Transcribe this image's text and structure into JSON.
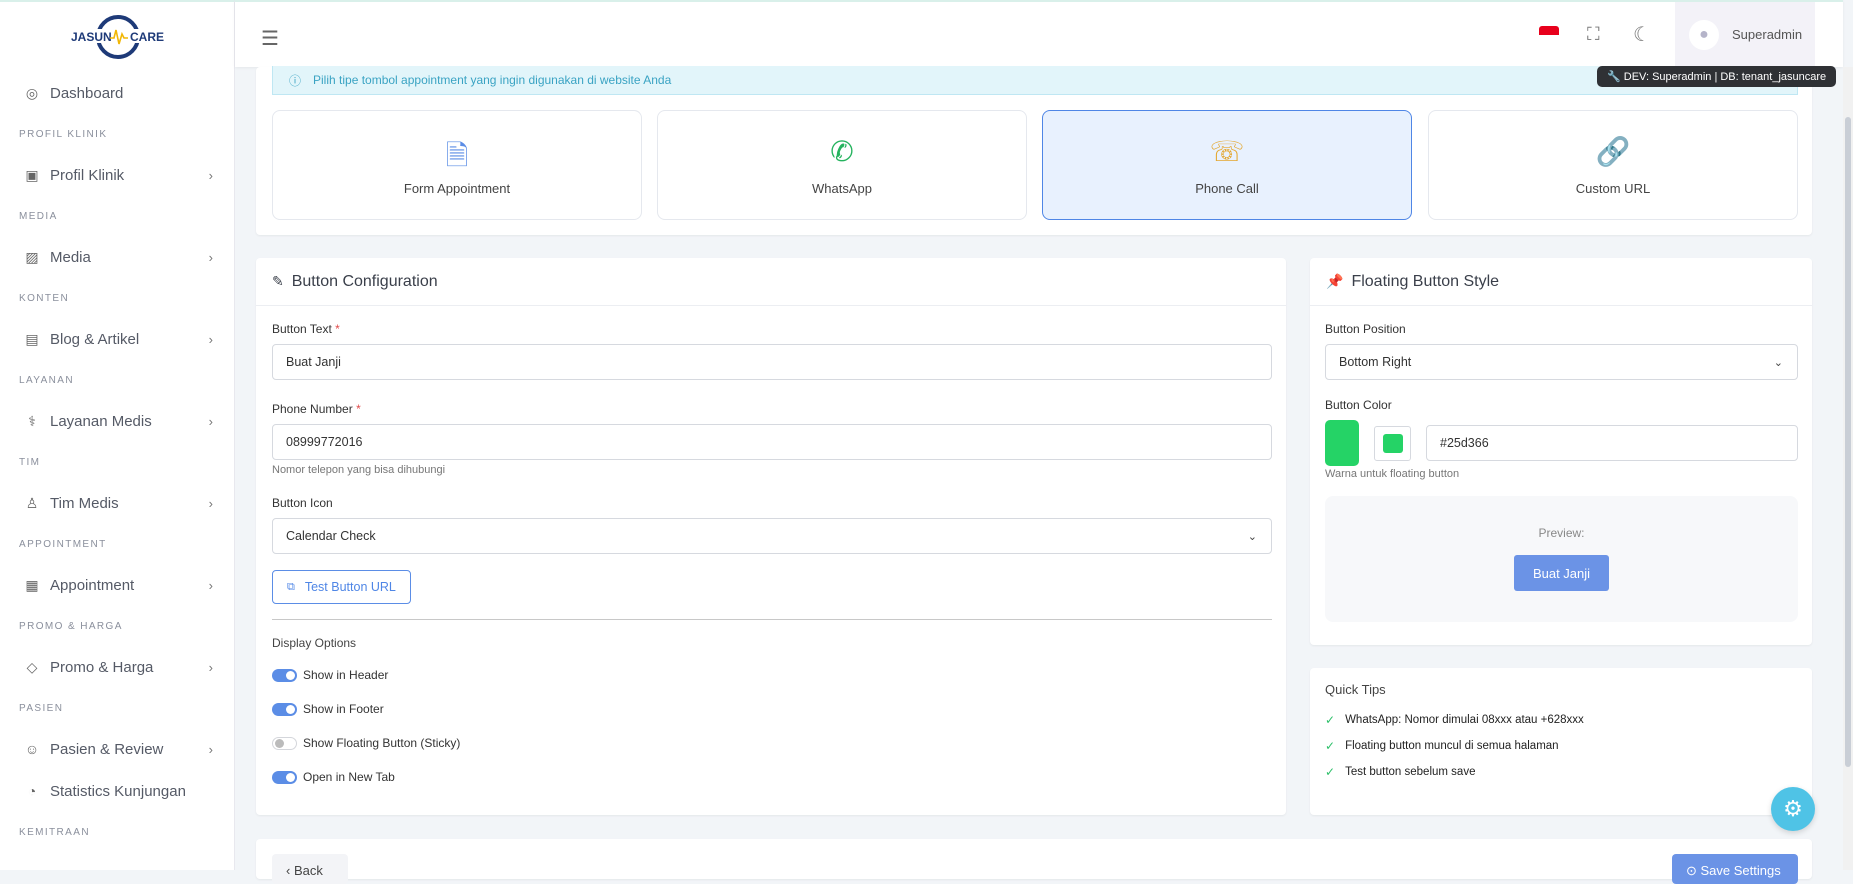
{
  "brand": {
    "logo_text_left": "JASUN",
    "logo_text_right": "CARE"
  },
  "sidebar": {
    "items": [
      {
        "type": "item",
        "label": "Dashboard",
        "icon": "dashboard-icon",
        "glyph": "◎",
        "chevron": false
      },
      {
        "type": "section",
        "label": "PROFIL KLINIK"
      },
      {
        "type": "item",
        "label": "Profil Klinik",
        "icon": "building-icon",
        "glyph": "▣",
        "chevron": true
      },
      {
        "type": "section",
        "label": "MEDIA"
      },
      {
        "type": "item",
        "label": "Media",
        "icon": "image-icon",
        "glyph": "▨",
        "chevron": true
      },
      {
        "type": "section",
        "label": "KONTEN"
      },
      {
        "type": "item",
        "label": "Blog & Artikel",
        "icon": "article-icon",
        "glyph": "▤",
        "chevron": true
      },
      {
        "type": "section",
        "label": "LAYANAN"
      },
      {
        "type": "item",
        "label": "Layanan Medis",
        "icon": "stethoscope-icon",
        "glyph": "⚕",
        "chevron": true
      },
      {
        "type": "section",
        "label": "TIM"
      },
      {
        "type": "item",
        "label": "Tim Medis",
        "icon": "user-team-icon",
        "glyph": "♙",
        "chevron": true
      },
      {
        "type": "section",
        "label": "APPOINTMENT"
      },
      {
        "type": "item",
        "label": "Appointment",
        "icon": "calendar-icon",
        "glyph": "▦",
        "chevron": true
      },
      {
        "type": "section",
        "label": "PROMO & HARGA"
      },
      {
        "type": "item",
        "label": "Promo & Harga",
        "icon": "tag-icon",
        "glyph": "◇",
        "chevron": true
      },
      {
        "type": "section",
        "label": "PASIEN"
      },
      {
        "type": "item",
        "label": "Pasien & Review",
        "icon": "smile-icon",
        "glyph": "☺",
        "chevron": true
      },
      {
        "type": "item",
        "label": "Statistics Kunjungan",
        "icon": "pie-chart-icon",
        "glyph": "◔",
        "chevron": false
      },
      {
        "type": "section",
        "label": "KEMITRAAN"
      }
    ]
  },
  "topbar": {
    "user_name": "Superadmin",
    "dev_tooltip": "🔧 DEV: Superadmin | DB: tenant_jasuncare"
  },
  "alert": {
    "text": "Pilih tipe tombol appointment yang ingin digunakan di website Anda"
  },
  "types": [
    {
      "label": "Form Appointment",
      "icon": "form-document-icon",
      "glyph": "🗎",
      "color": "#5b8de6",
      "active": false
    },
    {
      "label": "WhatsApp",
      "icon": "whatsapp-icon",
      "glyph": "✆",
      "color": "#25b35e",
      "active": false
    },
    {
      "label": "Phone Call",
      "icon": "phone-icon",
      "glyph": "☏",
      "color": "#e4a72f",
      "active": true
    },
    {
      "label": "Custom URL",
      "icon": "link-icon",
      "glyph": "🔗",
      "color": "#34b3dd",
      "active": false
    }
  ],
  "config": {
    "title": "Button Configuration",
    "button_text_label": "Button Text",
    "button_text_value": "Buat Janji",
    "phone_label": "Phone Number",
    "phone_value": "08999772016",
    "phone_help": "Nomor telepon yang bisa dihubungi",
    "icon_label": "Button Icon",
    "icon_value": "Calendar Check",
    "test_button": "Test Button URL",
    "display_title": "Display Options",
    "toggles": [
      {
        "label": "Show in Header",
        "on": true
      },
      {
        "label": "Show in Footer",
        "on": true
      },
      {
        "label": "Show Floating Button (Sticky)",
        "on": false
      },
      {
        "label": "Open in New Tab",
        "on": true
      }
    ]
  },
  "floating": {
    "title": "Floating Button Style",
    "position_label": "Button Position",
    "position_value": "Bottom Right",
    "color_label": "Button Color",
    "color_value": "#25d366",
    "color_help": "Warna untuk floating button",
    "preview_label": "Preview:",
    "preview_button": "Buat Janji",
    "preview_color": "#6b93e6"
  },
  "tips": {
    "title": "Quick Tips",
    "items": [
      "WhatsApp: Nomor dimulai 08xxx atau +628xxx",
      "Floating button muncul di semua halaman",
      "Test button sebelum save"
    ]
  },
  "footer": {
    "back": "Back",
    "save": "Save Settings"
  }
}
